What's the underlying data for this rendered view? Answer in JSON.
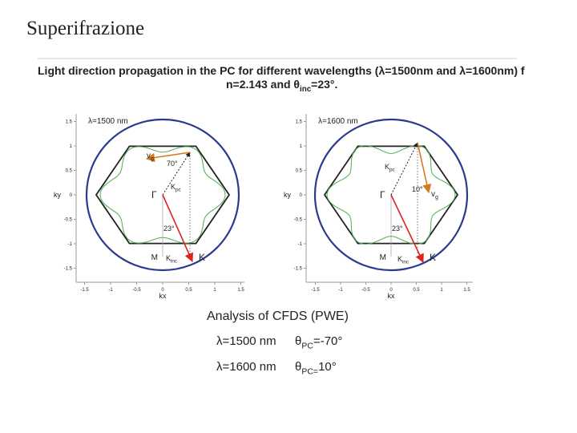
{
  "slide_title": "Superifrazione",
  "figure": {
    "caption_line1": "Light direction propagation in the PC for different wavelengths (λ=1500nm and λ=1600nm) f",
    "caption_line2": {
      "prefix": "n=2.143 and θ",
      "sub": "inc",
      "suffix": "=23°."
    },
    "x_label": "kx",
    "y_label": "ky",
    "x_ticks": [
      "-1.5",
      "-1",
      "-0.5",
      "0",
      "0.5",
      "1",
      "1.5"
    ],
    "y_ticks": [
      "1.5",
      "1",
      "0.5",
      "0",
      "-0.5",
      "-1",
      "-1.5"
    ],
    "points": {
      "gamma": "Γ",
      "m": "M",
      "k": "K"
    },
    "vectors": {
      "vg": {
        "main": "v",
        "sub": "g"
      },
      "kpc": {
        "main": "K",
        "sub": "pc"
      },
      "kinc": {
        "main": "K",
        "sub": "inc"
      }
    },
    "panels": [
      {
        "wavelength": "λ=1500 nm",
        "group_angle": "70°",
        "incidence_angle": "23°"
      },
      {
        "wavelength": "λ=1600 nm",
        "group_angle": "10°",
        "incidence_angle": "23°"
      }
    ]
  },
  "analysis": {
    "title": "Analysis of CFDS (PWE)",
    "rows": [
      {
        "wavelength": "λ=1500 nm",
        "theta": {
          "prefix": "θ",
          "sub": "PC",
          "suffix": "=-70°"
        }
      },
      {
        "wavelength": "λ=1600 nm",
        "theta": {
          "prefix": "θ",
          "sub": "PC=",
          "suffix": "10°"
        }
      }
    ]
  }
}
